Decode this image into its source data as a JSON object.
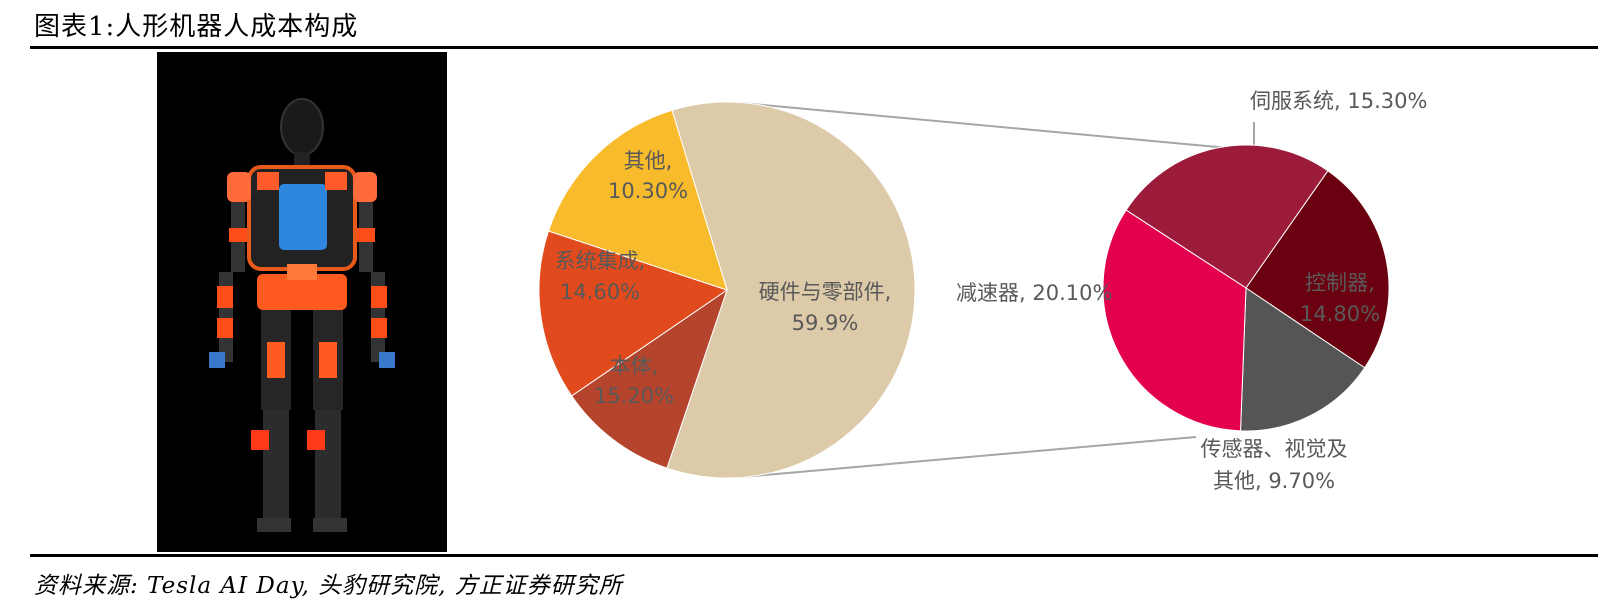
{
  "header": {
    "title": "图表1:人形机器人成本构成"
  },
  "footer": {
    "source": "资料来源: Tesla AI Day, 头豹研究院, 方正证券研究所"
  },
  "colors": {
    "hardware": "#dccaa8",
    "others": "#b5442d",
    "integration": "#e04a1c",
    "body": "#f7bb2b",
    "servo": "#9d1b3a",
    "controller": "#6b0010",
    "sensor": "#555555",
    "reducer": "#e3004f",
    "connector": "#a6a6a6",
    "label": "#595959"
  },
  "chart_data": [
    {
      "type": "pie",
      "slices": [
        {
          "label": "硬件与零部件",
          "value": 59.9,
          "text": "硬件与零部件,",
          "pct": "59.9%"
        },
        {
          "label": "其他",
          "value": 10.3,
          "text": "其他,",
          "pct": "10.30%"
        },
        {
          "label": "系统集成",
          "value": 14.6,
          "text": "系统集成,",
          "pct": "14.60%"
        },
        {
          "label": "本体",
          "value": 15.2,
          "text": "本体,",
          "pct": "15.20%"
        }
      ]
    },
    {
      "type": "pie",
      "slices": [
        {
          "label": "伺服系统",
          "value": 15.3,
          "text": "伺服系统, 15.30%"
        },
        {
          "label": "控制器",
          "value": 14.8,
          "text": "控制器,",
          "pct": "14.80%"
        },
        {
          "label": "传感器、视觉及其他",
          "value": 9.7,
          "text": "传感器、视觉及",
          "text2": "其他, 9.70%"
        },
        {
          "label": "减速器",
          "value": 20.1,
          "text": "减速器, 20.10%"
        }
      ]
    }
  ]
}
